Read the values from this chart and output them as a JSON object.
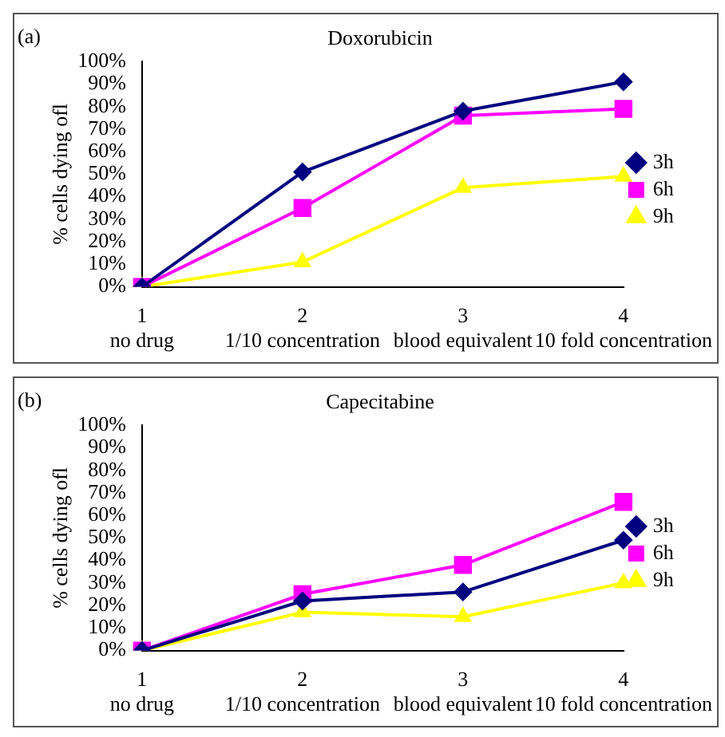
{
  "chart_data": [
    {
      "type": "line",
      "title": "Doxorubicin",
      "ylabel": "% cells dying ofl",
      "annotations": [
        "(a)"
      ],
      "categories": [
        "1\nno drug",
        "2\n1/10 concentration",
        "3\nblood equivalent",
        "4\n10 fold concentration"
      ],
      "ylim": [
        0,
        100
      ],
      "yticks": [
        {
          "value": 0,
          "label": "0%"
        },
        {
          "value": 10,
          "label": "10%"
        },
        {
          "value": 20,
          "label": "20%"
        },
        {
          "value": 30,
          "label": "30%"
        },
        {
          "value": 40,
          "label": "40%"
        },
        {
          "value": 50,
          "label": "50%"
        },
        {
          "value": 60,
          "label": "60%"
        },
        {
          "value": 70,
          "label": "70%"
        },
        {
          "value": 80,
          "label": "80%"
        },
        {
          "value": 90,
          "label": "90%"
        },
        {
          "value": 100,
          "label": "100%"
        }
      ],
      "grid": false,
      "legend": "right",
      "series": [
        {
          "name": "3h",
          "color": "#000080",
          "marker": "diamond",
          "values": [
            0,
            51,
            78,
            91
          ]
        },
        {
          "name": "6h",
          "color": "#ff00ff",
          "marker": "square",
          "values": [
            0,
            35,
            76,
            79
          ]
        },
        {
          "name": "9h",
          "color": "#ffff00",
          "marker": "triangle",
          "values": [
            0,
            11,
            44,
            49
          ]
        }
      ]
    },
    {
      "type": "line",
      "title": "Capecitabine",
      "ylabel": "% cells dying ofl",
      "annotations": [
        "(b)"
      ],
      "categories": [
        "1\nno drug",
        "2\n1/10 concentration",
        "3\nblood equivalent",
        "4\n10 fold concentration"
      ],
      "ylim": [
        0,
        100
      ],
      "yticks": [
        {
          "value": 0,
          "label": "0%"
        },
        {
          "value": 10,
          "label": "10%"
        },
        {
          "value": 20,
          "label": "20%"
        },
        {
          "value": 30,
          "label": "30%"
        },
        {
          "value": 40,
          "label": "40%"
        },
        {
          "value": 50,
          "label": "50%"
        },
        {
          "value": 60,
          "label": "60%"
        },
        {
          "value": 70,
          "label": "70%"
        },
        {
          "value": 80,
          "label": "80%"
        },
        {
          "value": 90,
          "label": "90%"
        },
        {
          "value": 100,
          "label": "100%"
        }
      ],
      "grid": false,
      "legend": "right",
      "series": [
        {
          "name": "3h",
          "color": "#000080",
          "marker": "diamond",
          "values": [
            0,
            22,
            26,
            49
          ]
        },
        {
          "name": "6h",
          "color": "#ff00ff",
          "marker": "square",
          "values": [
            0,
            25,
            38,
            66
          ]
        },
        {
          "name": "9h",
          "color": "#ffff00",
          "marker": "triangle",
          "values": [
            0,
            17,
            15,
            30
          ]
        }
      ]
    }
  ]
}
